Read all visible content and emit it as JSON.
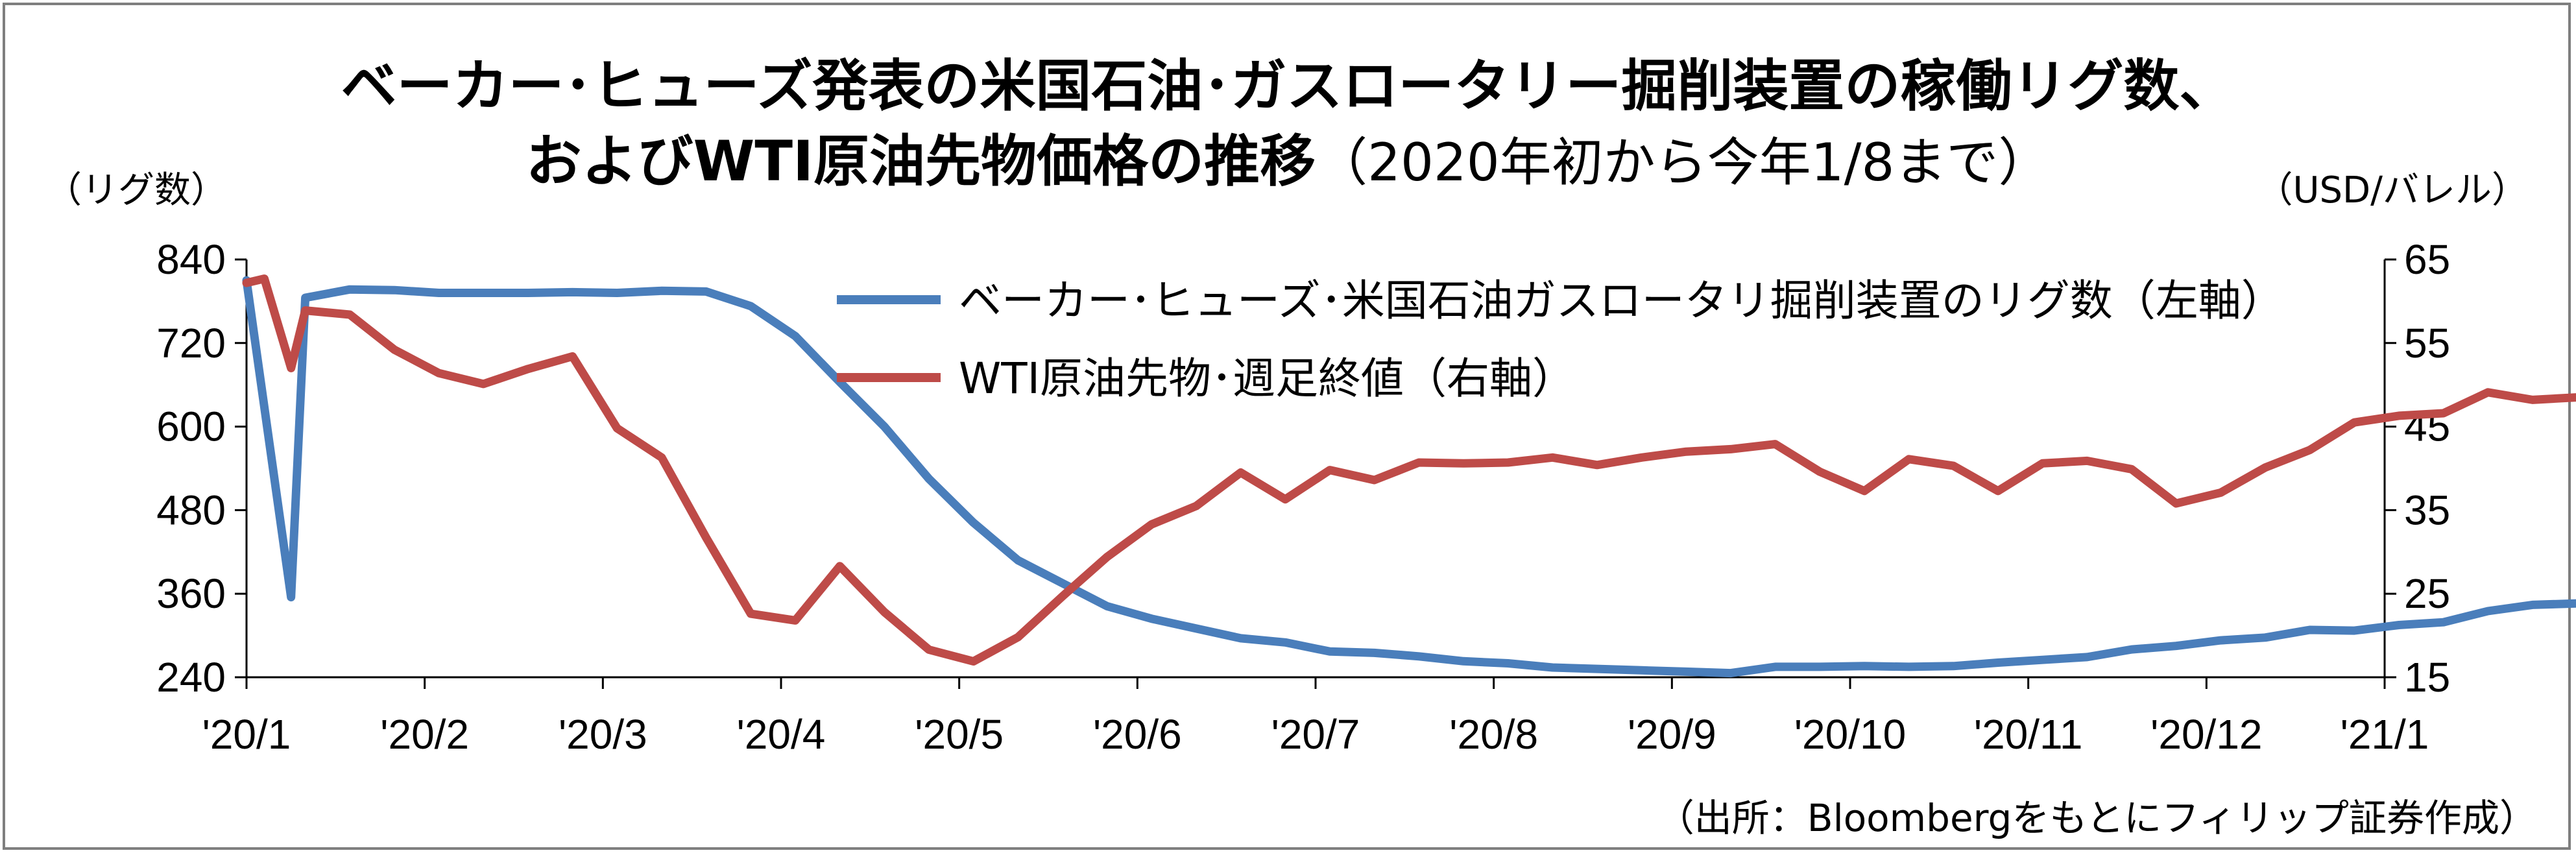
{
  "title": {
    "line1": "ベーカー･ヒューズ発表の米国石油･ガスロータリー掘削装置の稼働リグ数、",
    "line2_main": "およびWTI原油先物価格の推移",
    "line2_sub": "（2020年初から今年1/8まで）"
  },
  "units": {
    "left": "（リグ数）",
    "right": "（USD/バレル）"
  },
  "source": "（出所：Bloombergをもとにフィリップ証券作成）",
  "chart_data": {
    "type": "line",
    "x_labels": [
      "'20/1",
      "'20/2",
      "'20/3",
      "'20/4",
      "'20/5",
      "'20/6",
      "'20/7",
      "'20/8",
      "'20/9",
      "'20/10",
      "'20/11",
      "'20/12",
      "'21/1"
    ],
    "y_left": {
      "ticks": [
        "840",
        "720",
        "600",
        "480",
        "360",
        "240"
      ],
      "range": [
        240,
        840
      ]
    },
    "y_right": {
      "ticks": [
        "65",
        "55",
        "45",
        "35",
        "25",
        "15"
      ],
      "range": [
        15,
        65
      ]
    },
    "grid": false,
    "legend_position": "top-right",
    "series": [
      {
        "name": "ベーカー･ヒューズ･米国石油ガスロータリ掘削装置のリグ数（左軸）",
        "axis": "left",
        "color": "#4a7ebb",
        "values": [
          810,
          355,
          785,
          797,
          796,
          792,
          792,
          792,
          793,
          792,
          795,
          794,
          773,
          730,
          664,
          600,
          525,
          462,
          408,
          375,
          342,
          324,
          310,
          296,
          290,
          277,
          275,
          270,
          263,
          260,
          254,
          252,
          250,
          248,
          246,
          255,
          255,
          256,
          255,
          256,
          261,
          265,
          269,
          280,
          285,
          293,
          297,
          308,
          307,
          315,
          319,
          335,
          344,
          346,
          351
        ],
        "x_pos": [
          0.0,
          0.25,
          0.33,
          0.58,
          0.83,
          1.08,
          1.33,
          1.58,
          1.83,
          2.08,
          2.33,
          2.58,
          2.83,
          3.08,
          3.33,
          3.58,
          3.83,
          4.08,
          4.33,
          4.58,
          4.83,
          5.08,
          5.33,
          5.58,
          5.83,
          6.08,
          6.33,
          6.58,
          6.83,
          7.08,
          7.33,
          7.58,
          7.83,
          8.08,
          8.33,
          8.58,
          8.83,
          9.08,
          9.33,
          9.58,
          9.83,
          10.08,
          10.33,
          10.58,
          10.83,
          11.08,
          11.33,
          11.58,
          11.83,
          12.08,
          12.33,
          12.58,
          12.83,
          13.08,
          13.33
        ]
      },
      {
        "name": "WTI原油先物･週足終値（右軸）",
        "axis": "right",
        "color": "#be4b48",
        "values": [
          62.2,
          62.7,
          52.0,
          58.9,
          58.4,
          54.2,
          51.4,
          50.1,
          51.9,
          53.4,
          44.8,
          41.3,
          31.7,
          22.6,
          21.8,
          28.3,
          22.8,
          18.3,
          16.9,
          19.8,
          24.7,
          29.4,
          33.3,
          35.5,
          39.5,
          36.3,
          39.8,
          38.6,
          40.7,
          40.6,
          40.7,
          41.3,
          40.4,
          41.3,
          42.0,
          42.3,
          42.9,
          39.6,
          37.3,
          41.1,
          40.3,
          37.3,
          40.6,
          40.9,
          39.9,
          35.8,
          37.1,
          40.1,
          42.2,
          45.5,
          46.3,
          46.6,
          49.1,
          48.2,
          48.5
        ],
        "x_pos": [
          0.0,
          0.1,
          0.25,
          0.33,
          0.58,
          0.83,
          1.08,
          1.33,
          1.58,
          1.83,
          2.08,
          2.33,
          2.58,
          2.83,
          3.08,
          3.33,
          3.58,
          3.83,
          4.08,
          4.33,
          4.58,
          4.83,
          5.08,
          5.33,
          5.58,
          5.83,
          6.08,
          6.33,
          6.58,
          6.83,
          7.08,
          7.33,
          7.58,
          7.83,
          8.08,
          8.33,
          8.58,
          8.83,
          9.08,
          9.33,
          9.58,
          9.83,
          10.08,
          10.33,
          10.58,
          10.83,
          11.08,
          11.33,
          11.58,
          11.83,
          12.08,
          12.33,
          12.58,
          12.83,
          13.08
        ]
      }
    ]
  }
}
